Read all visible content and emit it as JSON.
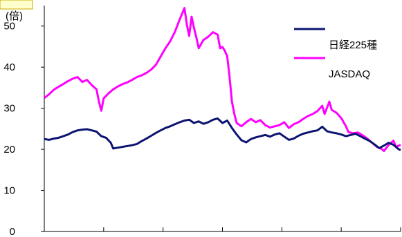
{
  "chart_data": {
    "type": "line",
    "unit_label": "(倍)",
    "ylim": [
      0,
      55
    ],
    "yticks": [
      0,
      10,
      20,
      30,
      40,
      50
    ],
    "x_tick_count": 6,
    "legend_position": "top-right",
    "series": [
      {
        "name": "日経225種",
        "color": "#0b1470",
        "points": [
          [
            0,
            22.5
          ],
          [
            4,
            22.3
          ],
          [
            8,
            22.6
          ],
          [
            12,
            22.8
          ],
          [
            16,
            23.2
          ],
          [
            20,
            23.6
          ],
          [
            24,
            24.2
          ],
          [
            28,
            24.6
          ],
          [
            32,
            24.8
          ],
          [
            36,
            24.9
          ],
          [
            40,
            24.6
          ],
          [
            44,
            24.3
          ],
          [
            48,
            23.2
          ],
          [
            52,
            22.8
          ],
          [
            56,
            21.6
          ],
          [
            58,
            20.2
          ],
          [
            62,
            20.4
          ],
          [
            66,
            20.6
          ],
          [
            70,
            20.8
          ],
          [
            74,
            21.0
          ],
          [
            78,
            21.3
          ],
          [
            82,
            22.0
          ],
          [
            86,
            22.6
          ],
          [
            90,
            23.3
          ],
          [
            94,
            24.0
          ],
          [
            98,
            24.6
          ],
          [
            102,
            25.2
          ],
          [
            106,
            25.6
          ],
          [
            110,
            26.1
          ],
          [
            114,
            26.6
          ],
          [
            118,
            27.0
          ],
          [
            122,
            27.2
          ],
          [
            126,
            26.4
          ],
          [
            130,
            26.8
          ],
          [
            134,
            26.2
          ],
          [
            138,
            26.6
          ],
          [
            142,
            27.2
          ],
          [
            146,
            27.5
          ],
          [
            150,
            26.4
          ],
          [
            154,
            27.0
          ],
          [
            158,
            25.2
          ],
          [
            162,
            23.6
          ],
          [
            166,
            22.2
          ],
          [
            170,
            21.7
          ],
          [
            174,
            22.5
          ],
          [
            178,
            22.9
          ],
          [
            182,
            23.2
          ],
          [
            186,
            23.5
          ],
          [
            190,
            23.1
          ],
          [
            194,
            23.6
          ],
          [
            198,
            23.9
          ],
          [
            202,
            23.1
          ],
          [
            206,
            22.3
          ],
          [
            210,
            22.6
          ],
          [
            214,
            23.3
          ],
          [
            218,
            23.8
          ],
          [
            222,
            24.1
          ],
          [
            226,
            24.4
          ],
          [
            230,
            24.6
          ],
          [
            234,
            25.5
          ],
          [
            238,
            24.4
          ],
          [
            242,
            24.1
          ],
          [
            246,
            23.9
          ],
          [
            250,
            23.6
          ],
          [
            254,
            23.2
          ],
          [
            258,
            23.5
          ],
          [
            262,
            23.8
          ],
          [
            266,
            23.2
          ],
          [
            270,
            22.6
          ],
          [
            274,
            22.0
          ],
          [
            278,
            21.2
          ],
          [
            282,
            20.3
          ],
          [
            286,
            20.9
          ],
          [
            290,
            21.6
          ],
          [
            294,
            21.1
          ],
          [
            298,
            20.1
          ],
          [
            300,
            19.8
          ]
        ]
      },
      {
        "name": "JASDAQ",
        "color": "#ff00ff",
        "points": [
          [
            0,
            32.5
          ],
          [
            4,
            33.4
          ],
          [
            8,
            34.5
          ],
          [
            12,
            35.2
          ],
          [
            16,
            35.9
          ],
          [
            20,
            36.6
          ],
          [
            24,
            37.2
          ],
          [
            28,
            37.6
          ],
          [
            32,
            36.4
          ],
          [
            36,
            36.9
          ],
          [
            40,
            35.6
          ],
          [
            44,
            34.6
          ],
          [
            46,
            31.6
          ],
          [
            48,
            29.4
          ],
          [
            50,
            32.4
          ],
          [
            54,
            33.6
          ],
          [
            58,
            34.6
          ],
          [
            62,
            35.3
          ],
          [
            66,
            35.9
          ],
          [
            70,
            36.3
          ],
          [
            74,
            36.9
          ],
          [
            78,
            37.6
          ],
          [
            82,
            38.0
          ],
          [
            86,
            38.6
          ],
          [
            90,
            39.4
          ],
          [
            94,
            40.6
          ],
          [
            98,
            42.6
          ],
          [
            102,
            44.6
          ],
          [
            106,
            46.3
          ],
          [
            110,
            48.6
          ],
          [
            114,
            51.6
          ],
          [
            118,
            54.4
          ],
          [
            120,
            50.4
          ],
          [
            122,
            47.6
          ],
          [
            124,
            52.3
          ],
          [
            126,
            49.6
          ],
          [
            128,
            47.3
          ],
          [
            130,
            44.6
          ],
          [
            134,
            46.6
          ],
          [
            138,
            47.4
          ],
          [
            142,
            48.5
          ],
          [
            146,
            47.9
          ],
          [
            148,
            44.6
          ],
          [
            150,
            44.9
          ],
          [
            152,
            44.0
          ],
          [
            154,
            42.6
          ],
          [
            156,
            37.6
          ],
          [
            158,
            31.6
          ],
          [
            160,
            28.6
          ],
          [
            162,
            26.4
          ],
          [
            166,
            25.6
          ],
          [
            170,
            26.6
          ],
          [
            174,
            27.4
          ],
          [
            178,
            26.6
          ],
          [
            182,
            27.1
          ],
          [
            186,
            25.9
          ],
          [
            190,
            25.3
          ],
          [
            194,
            25.6
          ],
          [
            198,
            25.9
          ],
          [
            202,
            26.6
          ],
          [
            206,
            25.2
          ],
          [
            210,
            26.1
          ],
          [
            214,
            26.6
          ],
          [
            218,
            27.4
          ],
          [
            222,
            28.1
          ],
          [
            226,
            28.6
          ],
          [
            230,
            29.3
          ],
          [
            234,
            30.6
          ],
          [
            236,
            28.6
          ],
          [
            240,
            31.6
          ],
          [
            242,
            29.6
          ],
          [
            246,
            28.9
          ],
          [
            250,
            27.6
          ],
          [
            254,
            25.6
          ],
          [
            256,
            24.2
          ],
          [
            260,
            23.9
          ],
          [
            264,
            24.1
          ],
          [
            268,
            23.4
          ],
          [
            272,
            22.6
          ],
          [
            276,
            21.6
          ],
          [
            280,
            20.6
          ],
          [
            284,
            20.1
          ],
          [
            286,
            19.6
          ],
          [
            290,
            21.1
          ],
          [
            294,
            22.1
          ],
          [
            296,
            20.6
          ],
          [
            300,
            21.1
          ]
        ]
      }
    ]
  }
}
